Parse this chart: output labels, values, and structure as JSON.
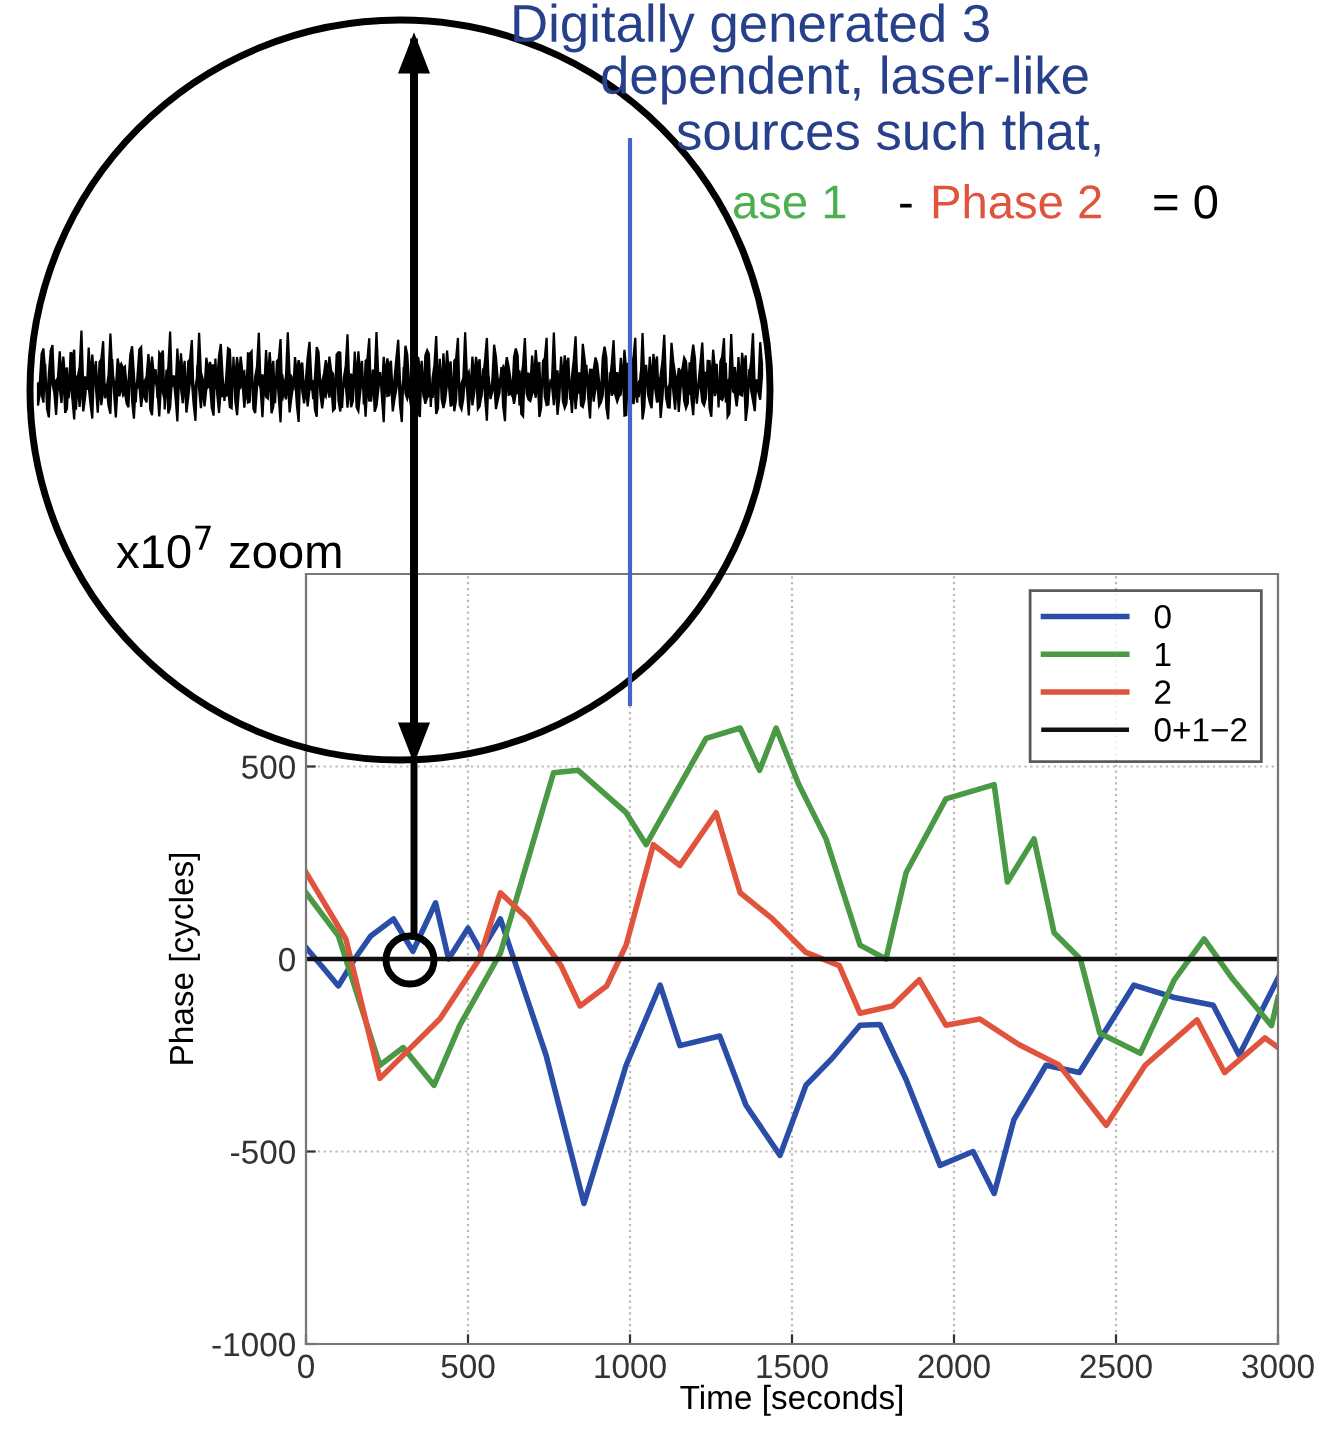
{
  "chart_data": {
    "type": "line",
    "xlabel": "Time [seconds]",
    "ylabel": "Phase [cycles]",
    "annotations": [
      "Digitally generated 3",
      "dependent, laser-like",
      "sources such that,",
      "ase 1",
      "-",
      "Phase 2",
      "= 0",
      "x10$^{7}$ zoom"
    ],
    "xlim": [
      0,
      3000
    ],
    "xticks": [
      0,
      500,
      1000,
      1500,
      2000,
      2500,
      3000
    ],
    "ylim": [
      -1000,
      1000
    ],
    "yticks": [
      -1000,
      -500,
      0,
      500
    ],
    "grid": true,
    "legend": "top right",
    "series": [
      {
        "name": "0",
        "color": "#2a4ea8",
        "x": [
          0,
          60,
          100,
          150,
          200,
          270,
          330,
          400,
          440,
          500,
          540,
          600,
          741,
          858,
          988,
          1093,
          1154,
          1277,
          1358,
          1463,
          1543,
          1626,
          1710,
          1772,
          1852,
          1957,
          2059,
          2124,
          2185,
          2284,
          2387,
          2555,
          2680,
          2800,
          2880,
          3000
        ],
        "values": [
          30,
          -30,
          -70,
          0,
          60,
          104,
          20,
          146,
          0,
          80,
          20,
          104,
          -250,
          -635,
          -276,
          -68,
          -225,
          -200,
          -380,
          -510,
          -328,
          -256,
          -172,
          -170,
          -313,
          -536,
          -500,
          -609,
          -417,
          -276,
          -295,
          -68,
          -100,
          -120,
          -250,
          -50
        ]
      },
      {
        "name": "1",
        "color": "#4a9a45",
        "x": [
          0,
          100,
          228,
          300,
          395,
          475,
          600,
          764,
          840,
          988,
          1050,
          1235,
          1340,
          1400,
          1451,
          1520,
          1605,
          1710,
          1790,
          1852,
          1975,
          2124,
          2165,
          2247,
          2309,
          2390,
          2450,
          2575,
          2680,
          2772,
          2860,
          2980,
          3000
        ],
        "values": [
          172,
          60,
          -276,
          -230,
          -328,
          -172,
          15,
          484,
          490,
          380,
          297,
          573,
          600,
          490,
          600,
          455,
          312,
          36,
          0,
          224,
          416,
          453,
          200,
          312,
          68,
          0,
          -193,
          -245,
          -54,
          52,
          -52,
          -173,
          -100
        ]
      },
      {
        "name": "2",
        "color": "#e0533c",
        "x": [
          0,
          123,
          228,
          330,
          413,
          535,
          600,
          685,
          787,
          846,
          928,
          988,
          1072,
          1154,
          1266,
          1340,
          1440,
          1543,
          1646,
          1710,
          1810,
          1893,
          1975,
          2080,
          2200,
          2324,
          2470,
          2590,
          2750,
          2835,
          2960,
          3000
        ],
        "values": [
          225,
          52,
          -310,
          -225,
          -156,
          0,
          172,
          104,
          -17,
          -122,
          -70,
          36,
          297,
          243,
          380,
          172,
          104,
          17,
          -17,
          -141,
          -122,
          -54,
          -172,
          -156,
          -222,
          -275,
          -432,
          -276,
          -158,
          -295,
          -205,
          -230
        ]
      },
      {
        "name": "0+1−2",
        "color": "#111111",
        "x": [
          0,
          3000
        ],
        "values": [
          0,
          0
        ]
      }
    ]
  }
}
